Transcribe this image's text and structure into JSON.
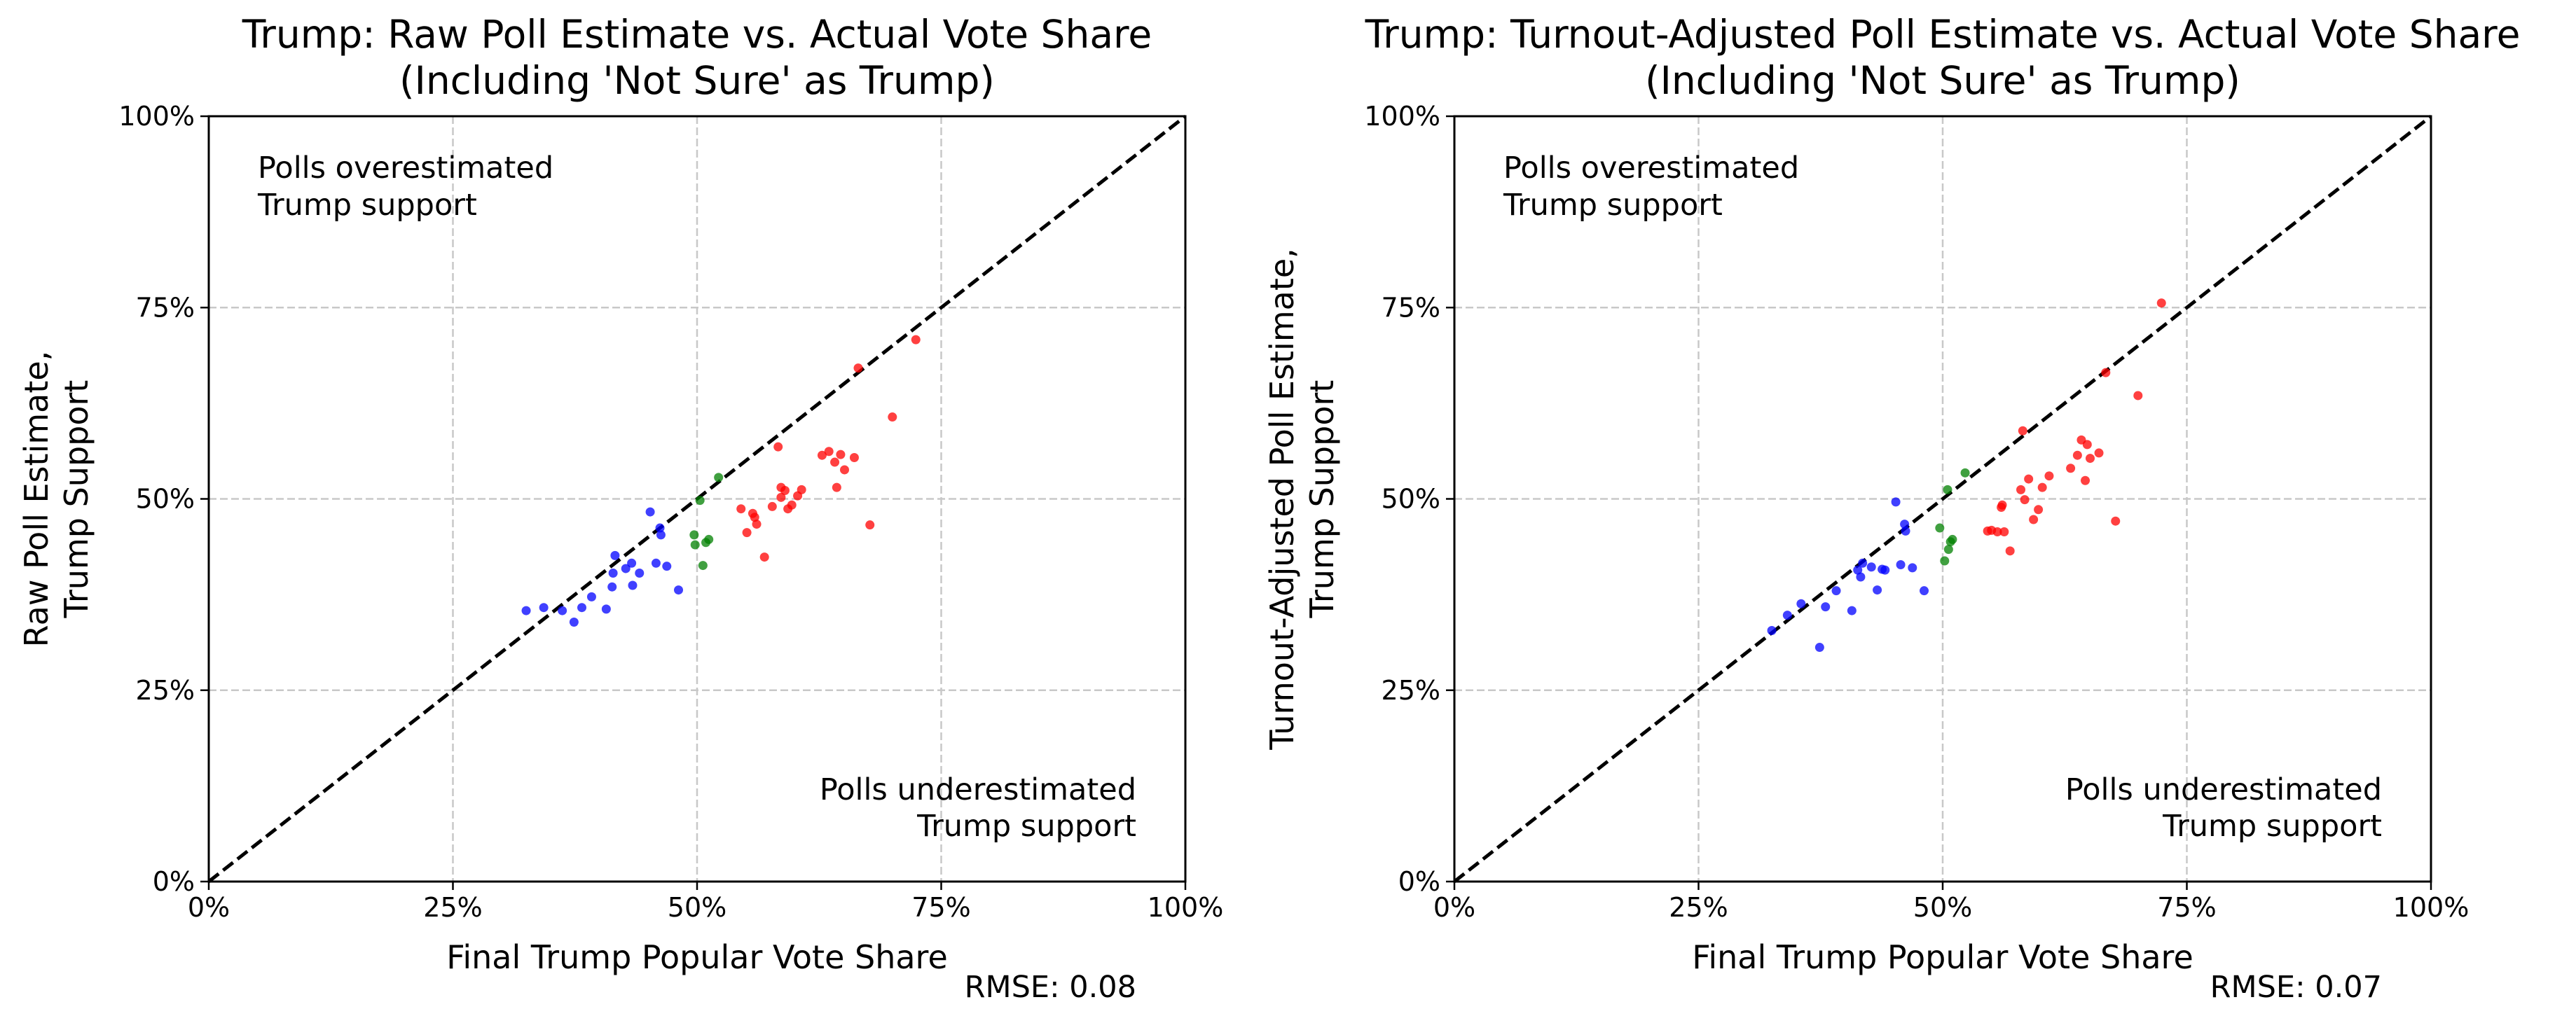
{
  "chart_data": [
    {
      "type": "scatter",
      "title_line1": "Trump: Raw Poll Estimate vs. Actual Vote Share",
      "title_line2": "(Including 'Not Sure' as Trump)",
      "xlabel": "Final Trump Popular Vote Share",
      "ylabel_line1": "Raw Poll Estimate,",
      "ylabel_line2": "Trump Support",
      "xlim": [
        0,
        1
      ],
      "ylim": [
        0,
        1
      ],
      "xticks": [
        "0%",
        "25%",
        "50%",
        "75%",
        "100%"
      ],
      "yticks": [
        "0%",
        "25%",
        "50%",
        "75%",
        "100%"
      ],
      "grid": true,
      "reference_line": "y = x",
      "annotation_over_line1": "Polls overestimated",
      "annotation_over_line2": "Trump support",
      "annotation_under_line1": "Polls underestimated",
      "annotation_under_line2": "Trump support",
      "rmse_label": "RMSE: 0.08",
      "series": [
        {
          "color": "#0000ff",
          "points": [
            [
              0.325,
              0.354
            ],
            [
              0.343,
              0.358
            ],
            [
              0.362,
              0.354
            ],
            [
              0.374,
              0.339
            ],
            [
              0.382,
              0.358
            ],
            [
              0.392,
              0.372
            ],
            [
              0.407,
              0.356
            ],
            [
              0.413,
              0.385
            ],
            [
              0.414,
              0.403
            ],
            [
              0.416,
              0.426
            ],
            [
              0.427,
              0.409
            ],
            [
              0.433,
              0.416
            ],
            [
              0.434,
              0.387
            ],
            [
              0.441,
              0.403
            ],
            [
              0.452,
              0.483
            ],
            [
              0.458,
              0.416
            ],
            [
              0.462,
              0.462
            ],
            [
              0.463,
              0.453
            ],
            [
              0.469,
              0.412
            ],
            [
              0.481,
              0.381
            ]
          ]
        },
        {
          "color": "#008000",
          "points": [
            [
              0.497,
              0.453
            ],
            [
              0.498,
              0.44
            ],
            [
              0.503,
              0.498
            ],
            [
              0.506,
              0.413
            ],
            [
              0.509,
              0.443
            ],
            [
              0.512,
              0.447
            ],
            [
              0.522,
              0.528
            ]
          ]
        },
        {
          "color": "#ff0000",
          "points": [
            [
              0.545,
              0.487
            ],
            [
              0.551,
              0.456
            ],
            [
              0.557,
              0.481
            ],
            [
              0.559,
              0.476
            ],
            [
              0.561,
              0.467
            ],
            [
              0.569,
              0.424
            ],
            [
              0.577,
              0.49
            ],
            [
              0.583,
              0.568
            ],
            [
              0.586,
              0.502
            ],
            [
              0.586,
              0.515
            ],
            [
              0.59,
              0.511
            ],
            [
              0.593,
              0.487
            ],
            [
              0.597,
              0.492
            ],
            [
              0.603,
              0.504
            ],
            [
              0.607,
              0.512
            ],
            [
              0.628,
              0.557
            ],
            [
              0.635,
              0.562
            ],
            [
              0.641,
              0.548
            ],
            [
              0.643,
              0.515
            ],
            [
              0.647,
              0.558
            ],
            [
              0.651,
              0.538
            ],
            [
              0.661,
              0.554
            ],
            [
              0.665,
              0.671
            ],
            [
              0.677,
              0.466
            ],
            [
              0.7,
              0.607
            ],
            [
              0.724,
              0.708
            ]
          ]
        }
      ]
    },
    {
      "type": "scatter",
      "title_line1": "Trump: Turnout-Adjusted Poll Estimate vs. Actual Vote Share",
      "title_line2": "(Including 'Not Sure' as Trump)",
      "xlabel": "Final Trump Popular Vote Share",
      "ylabel_line1": "Turnout-Adjusted Poll Estimate,",
      "ylabel_line2": "Trump Support",
      "xlim": [
        0,
        1
      ],
      "ylim": [
        0,
        1
      ],
      "xticks": [
        "0%",
        "25%",
        "50%",
        "75%",
        "100%"
      ],
      "yticks": [
        "0%",
        "25%",
        "50%",
        "75%",
        "100%"
      ],
      "grid": true,
      "reference_line": "y = x",
      "annotation_over_line1": "Polls overestimated",
      "annotation_over_line2": "Trump support",
      "annotation_under_line1": "Polls underestimated",
      "annotation_under_line2": "Trump support",
      "rmse_label": "RMSE: 0.07",
      "series": [
        {
          "color": "#0000ff",
          "points": [
            [
              0.325,
              0.328
            ],
            [
              0.341,
              0.348
            ],
            [
              0.355,
              0.363
            ],
            [
              0.374,
              0.306
            ],
            [
              0.38,
              0.359
            ],
            [
              0.391,
              0.38
            ],
            [
              0.407,
              0.354
            ],
            [
              0.413,
              0.407
            ],
            [
              0.416,
              0.398
            ],
            [
              0.418,
              0.416
            ],
            [
              0.427,
              0.411
            ],
            [
              0.433,
              0.381
            ],
            [
              0.438,
              0.408
            ],
            [
              0.441,
              0.407
            ],
            [
              0.452,
              0.496
            ],
            [
              0.457,
              0.414
            ],
            [
              0.461,
              0.467
            ],
            [
              0.462,
              0.458
            ],
            [
              0.469,
              0.41
            ],
            [
              0.481,
              0.38
            ]
          ]
        },
        {
          "color": "#008000",
          "points": [
            [
              0.497,
              0.462
            ],
            [
              0.502,
              0.419
            ],
            [
              0.505,
              0.512
            ],
            [
              0.506,
              0.434
            ],
            [
              0.508,
              0.444
            ],
            [
              0.51,
              0.447
            ],
            [
              0.523,
              0.534
            ]
          ]
        },
        {
          "color": "#ff0000",
          "points": [
            [
              0.546,
              0.458
            ],
            [
              0.55,
              0.459
            ],
            [
              0.556,
              0.457
            ],
            [
              0.56,
              0.489
            ],
            [
              0.561,
              0.492
            ],
            [
              0.563,
              0.457
            ],
            [
              0.569,
              0.432
            ],
            [
              0.58,
              0.512
            ],
            [
              0.582,
              0.589
            ],
            [
              0.584,
              0.499
            ],
            [
              0.588,
              0.526
            ],
            [
              0.593,
              0.473
            ],
            [
              0.598,
              0.486
            ],
            [
              0.602,
              0.515
            ],
            [
              0.609,
              0.53
            ],
            [
              0.631,
              0.54
            ],
            [
              0.638,
              0.557
            ],
            [
              0.642,
              0.577
            ],
            [
              0.646,
              0.524
            ],
            [
              0.648,
              0.571
            ],
            [
              0.651,
              0.553
            ],
            [
              0.66,
              0.56
            ],
            [
              0.667,
              0.665
            ],
            [
              0.677,
              0.471
            ],
            [
              0.7,
              0.635
            ],
            [
              0.724,
              0.756
            ]
          ]
        }
      ]
    }
  ]
}
